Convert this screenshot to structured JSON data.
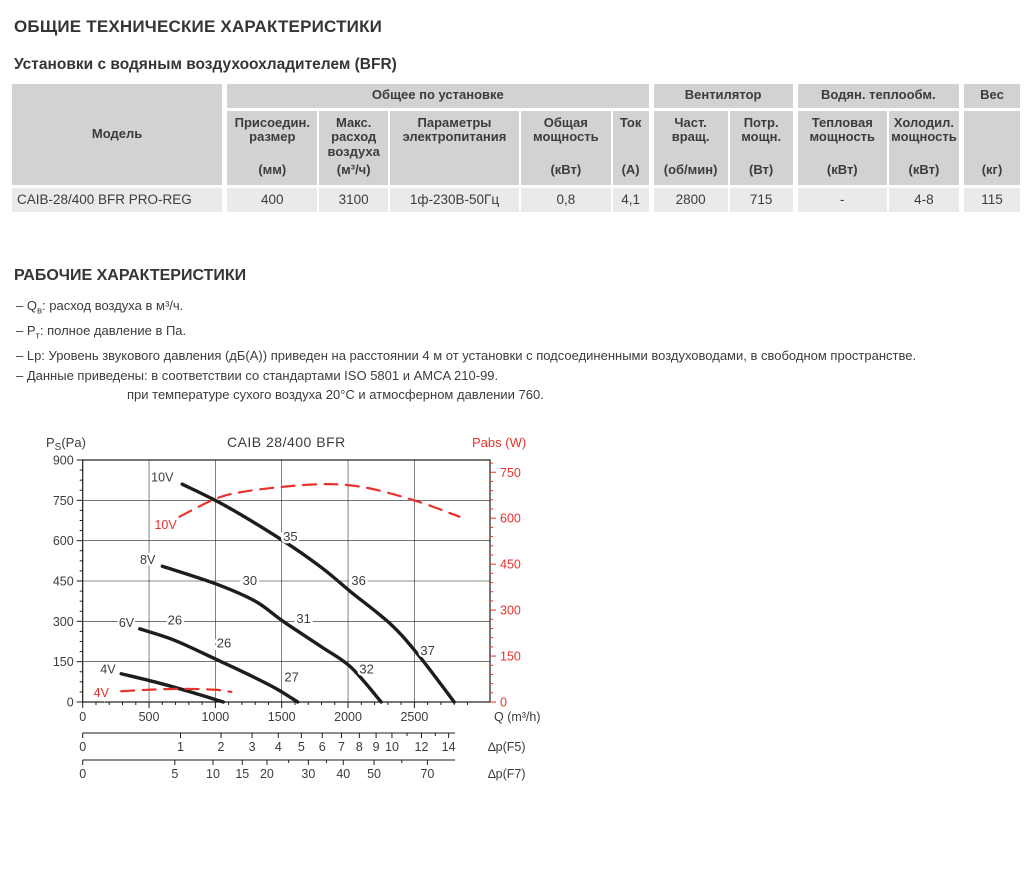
{
  "page": {
    "title": "ОБЩИЕ ТЕХНИЧЕСКИЕ ХАРАКТЕРИСТИКИ",
    "subtitle": "Установки с водяным воздухоохладителем (BFR)",
    "section2_title": "РАБОЧИЕ ХАРАКТЕРИСТИКИ"
  },
  "table": {
    "model_header": "Модель",
    "groups": {
      "general": "Общее по установке",
      "fan": "Вентилятор",
      "water": "Водян. теплообм.",
      "weight": "Вес"
    },
    "columns": [
      {
        "name": "Присоедин. размер",
        "unit": "(мм)"
      },
      {
        "name": "Макс. расход воздуха",
        "unit": "(м³/ч)"
      },
      {
        "name": "Параметры электропитания",
        "unit": ""
      },
      {
        "name": "Общая мощность",
        "unit": "(кВт)"
      },
      {
        "name": "Ток",
        "unit": "(А)"
      },
      {
        "name": "Част. вращ.",
        "unit": "(об/мин)"
      },
      {
        "name": "Потр. мощн.",
        "unit": "(Вт)"
      },
      {
        "name": "Тепловая мощность",
        "unit": "(кВт)"
      },
      {
        "name": "Холодил. мощность",
        "unit": "(кВт)"
      }
    ],
    "weight_unit": "(кг)",
    "row": {
      "model": "CAIB-28/400 BFR PRO-REG",
      "values": [
        "400",
        "3100",
        "1ф-230В-50Гц",
        "0,8",
        "4,1",
        "2800",
        "715",
        "-",
        "4-8",
        "115"
      ]
    }
  },
  "notes": [
    {
      "pre": "– Q",
      "sub": "в",
      "post": ": расход воздуха в м³/ч."
    },
    {
      "pre": "– P",
      "sub": "т",
      "post": ": полное давление в Па."
    },
    {
      "pre": "– Lp: Уровень звукового давления (дБ(А)) приведен на расстоянии 4 м от установки с подсоединенными воздуховодами, в свободном пространстве.",
      "sub": "",
      "post": ""
    },
    {
      "pre": "– Данные приведены:  в соответствии со стандартами ISO 5801 и AMCA 210-99.",
      "sub": "",
      "post": ""
    },
    {
      "pre": "при температуре сухого воздуха 20°С и атмосферном давлении 760.",
      "sub": "",
      "post": ""
    }
  ],
  "chart_data": {
    "type": "line",
    "title": "CAIB 28/400 BFR",
    "colors": {
      "black": "#1d1d1b",
      "red": "#e8322b",
      "text": "#3c3c3b"
    },
    "y_left": {
      "label_pre": "P",
      "label_sub": "S",
      "label_post": "(Pa)",
      "max": 900,
      "ticks": [
        0,
        150,
        300,
        450,
        600,
        750,
        900
      ],
      "minor_step": 37.5
    },
    "y_right": {
      "label": "Pabs (W)",
      "max": 790,
      "ticks": [
        0,
        150,
        300,
        450,
        600,
        750
      ],
      "minor_step": 30
    },
    "x_axis": {
      "label": "Q (m³/h)",
      "max": 3070,
      "ticks": [
        0,
        500,
        1000,
        1500,
        2000,
        2500
      ],
      "grid": [
        500,
        1000,
        1500,
        2000,
        2500
      ],
      "minor_step": 100
    },
    "filter_axes": [
      {
        "label": "∆p(F5)",
        "ticks": [
          0,
          1,
          2,
          3,
          4,
          5,
          6,
          7,
          8,
          9,
          10,
          12,
          14
        ],
        "minor": [
          11,
          13
        ]
      },
      {
        "label": "∆p(F7)",
        "ticks": [
          0,
          5,
          10,
          15,
          20,
          30,
          40,
          50,
          70
        ],
        "minor": [
          25,
          35,
          60
        ]
      }
    ],
    "series": [
      {
        "name": "10V",
        "axis": "left",
        "color": "black",
        "dashed": false,
        "points": [
          [
            750,
            810
          ],
          [
            1075,
            730
          ],
          [
            1510,
            600
          ],
          [
            1800,
            500
          ],
          [
            2020,
            410
          ],
          [
            2320,
            290
          ],
          [
            2530,
            175
          ],
          [
            2800,
            0
          ]
        ]
      },
      {
        "name": "8V",
        "axis": "left",
        "color": "black",
        "dashed": false,
        "points": [
          [
            600,
            505
          ],
          [
            1000,
            440
          ],
          [
            1300,
            375
          ],
          [
            1510,
            300
          ],
          [
            1800,
            205
          ],
          [
            2020,
            130
          ],
          [
            2250,
            0
          ]
        ]
      },
      {
        "name": "6V",
        "axis": "left",
        "color": "black",
        "dashed": false,
        "points": [
          [
            430,
            272
          ],
          [
            690,
            230
          ],
          [
            1000,
            160
          ],
          [
            1225,
            108
          ],
          [
            1450,
            52
          ],
          [
            1620,
            0
          ]
        ]
      },
      {
        "name": "4V",
        "axis": "left",
        "color": "black",
        "dashed": false,
        "points": [
          [
            290,
            105
          ],
          [
            580,
            70
          ],
          [
            830,
            35
          ],
          [
            1060,
            0
          ]
        ]
      },
      {
        "name": "10V",
        "axis": "right",
        "color": "red",
        "dashed": true,
        "points": [
          [
            730,
            605
          ],
          [
            1010,
            665
          ],
          [
            1220,
            687
          ],
          [
            1520,
            703
          ],
          [
            1800,
            711
          ],
          [
            2000,
            708
          ],
          [
            2220,
            692
          ],
          [
            2530,
            654
          ],
          [
            2840,
            605
          ]
        ]
      },
      {
        "name": "4V",
        "axis": "right",
        "color": "red",
        "dashed": true,
        "points": [
          [
            290,
            35
          ],
          [
            500,
            40
          ],
          [
            750,
            43
          ],
          [
            1000,
            40
          ],
          [
            1120,
            33
          ]
        ]
      }
    ],
    "curve_labels": [
      {
        "text": "10V",
        "q": 600,
        "v": 835,
        "axis": "left",
        "color": "black"
      },
      {
        "text": "8V",
        "q": 490,
        "v": 529,
        "axis": "left",
        "color": "black"
      },
      {
        "text": "6V",
        "q": 330,
        "v": 293,
        "axis": "left",
        "color": "black"
      },
      {
        "text": "4V",
        "q": 190,
        "v": 120,
        "axis": "left",
        "color": "black"
      },
      {
        "text": "10V",
        "q": 625,
        "v": 578,
        "axis": "right",
        "color": "red"
      },
      {
        "text": "4V",
        "q": 140,
        "v": 30,
        "axis": "right",
        "color": "red"
      }
    ],
    "point_labels": [
      {
        "text": "35",
        "q": 1565,
        "v": 614
      },
      {
        "text": "36",
        "q": 2080,
        "v": 450
      },
      {
        "text": "37",
        "q": 2600,
        "v": 190
      },
      {
        "text": "30",
        "q": 1260,
        "v": 450
      },
      {
        "text": "31",
        "q": 1665,
        "v": 308
      },
      {
        "text": "32",
        "q": 2140,
        "v": 120
      },
      {
        "text": "26",
        "q": 695,
        "v": 303
      },
      {
        "text": "26",
        "q": 1065,
        "v": 218
      },
      {
        "text": "27",
        "q": 1575,
        "v": 92
      }
    ]
  }
}
